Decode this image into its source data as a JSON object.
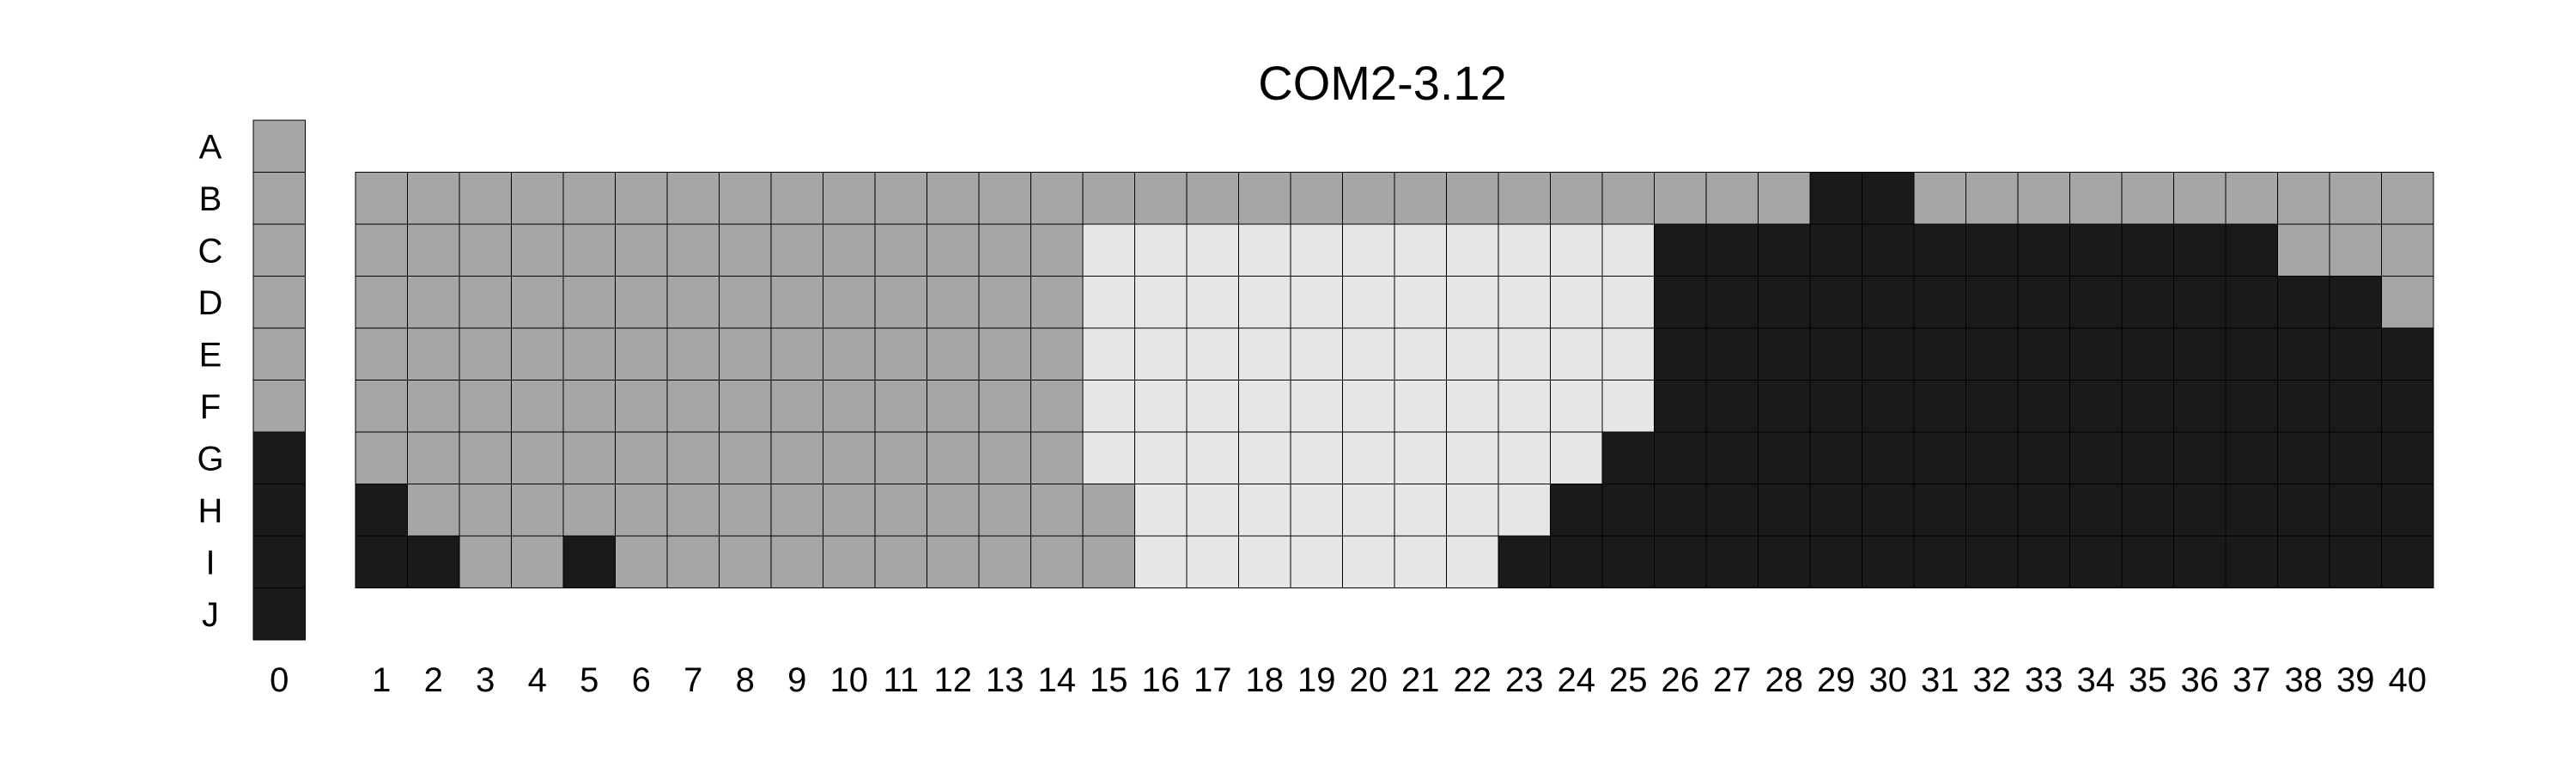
{
  "chart_data": {
    "type": "heatmap",
    "title": "COM2-3.12",
    "rows": [
      "A",
      "B",
      "C",
      "D",
      "E",
      "F",
      "G",
      "H",
      "I",
      "J"
    ],
    "columns": [
      "1",
      "2",
      "3",
      "4",
      "5",
      "6",
      "7",
      "8",
      "9",
      "10",
      "11",
      "12",
      "13",
      "14",
      "15",
      "16",
      "17",
      "18",
      "19",
      "20",
      "21",
      "22",
      "23",
      "24",
      "25",
      "26",
      "27",
      "28",
      "29",
      "30",
      "31",
      "32",
      "33",
      "34",
      "35",
      "36",
      "37",
      "38",
      "39",
      "40"
    ],
    "color_map": {
      "0": "#ffffff",
      "1": "#e6e6e6",
      "2": "#a6a6a6",
      "3": "#1a1a1a"
    },
    "grid_cells": [
      [
        2,
        2,
        2,
        2,
        2,
        2,
        2,
        2,
        2,
        2,
        2,
        2,
        2,
        2,
        2,
        2,
        2,
        2,
        2,
        2,
        2,
        2,
        2,
        2,
        2,
        2,
        2,
        2,
        3,
        3,
        2,
        2,
        2,
        2,
        2,
        2,
        2,
        2,
        2,
        2
      ],
      [
        2,
        2,
        2,
        2,
        2,
        2,
        2,
        2,
        2,
        2,
        2,
        2,
        2,
        2,
        1,
        1,
        1,
        1,
        1,
        1,
        1,
        1,
        1,
        1,
        1,
        3,
        3,
        3,
        3,
        3,
        3,
        3,
        3,
        3,
        3,
        3,
        3,
        2,
        2,
        2
      ],
      [
        2,
        2,
        2,
        2,
        2,
        2,
        2,
        2,
        2,
        2,
        2,
        2,
        2,
        2,
        1,
        1,
        1,
        1,
        1,
        1,
        1,
        1,
        1,
        1,
        1,
        3,
        3,
        3,
        3,
        3,
        3,
        3,
        3,
        3,
        3,
        3,
        3,
        3,
        3,
        2
      ],
      [
        2,
        2,
        2,
        2,
        2,
        2,
        2,
        2,
        2,
        2,
        2,
        2,
        2,
        2,
        1,
        1,
        1,
        1,
        1,
        1,
        1,
        1,
        1,
        1,
        1,
        3,
        3,
        3,
        3,
        3,
        3,
        3,
        3,
        3,
        3,
        3,
        3,
        3,
        3,
        3
      ],
      [
        2,
        2,
        2,
        2,
        2,
        2,
        2,
        2,
        2,
        2,
        2,
        2,
        2,
        2,
        1,
        1,
        1,
        1,
        1,
        1,
        1,
        1,
        1,
        1,
        1,
        3,
        3,
        3,
        3,
        3,
        3,
        3,
        3,
        3,
        3,
        3,
        3,
        3,
        3,
        3
      ],
      [
        2,
        2,
        2,
        2,
        2,
        2,
        2,
        2,
        2,
        2,
        2,
        2,
        2,
        2,
        1,
        1,
        1,
        1,
        1,
        1,
        1,
        1,
        1,
        1,
        3,
        3,
        3,
        3,
        3,
        3,
        3,
        3,
        3,
        3,
        3,
        3,
        3,
        3,
        3,
        3
      ],
      [
        3,
        2,
        2,
        2,
        2,
        2,
        2,
        2,
        2,
        2,
        2,
        2,
        2,
        2,
        2,
        1,
        1,
        1,
        1,
        1,
        1,
        1,
        1,
        3,
        3,
        3,
        3,
        3,
        3,
        3,
        3,
        3,
        3,
        3,
        3,
        3,
        3,
        3,
        3,
        3
      ],
      [
        3,
        3,
        2,
        2,
        3,
        2,
        2,
        2,
        2,
        2,
        2,
        2,
        2,
        2,
        2,
        1,
        1,
        1,
        1,
        1,
        1,
        1,
        3,
        3,
        3,
        3,
        3,
        3,
        3,
        3,
        3,
        3,
        3,
        3,
        3,
        3,
        3,
        3,
        3,
        3
      ]
    ],
    "grid_row_start": "B",
    "column_0": {
      "label": "0",
      "cells": [
        2,
        2,
        2,
        2,
        2,
        2,
        3,
        3,
        3,
        3
      ]
    }
  }
}
